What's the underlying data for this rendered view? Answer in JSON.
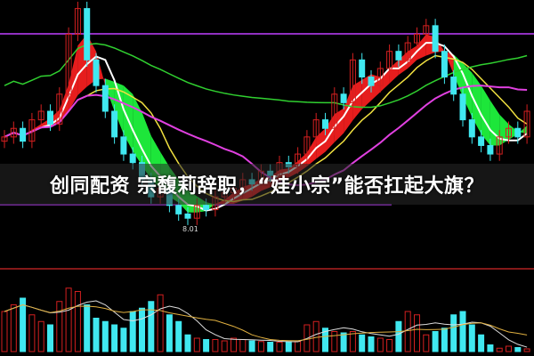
{
  "headline": "创同配资 宗馥莉辞职，“娃小宗”能否扛起大旗？",
  "chart_data": {
    "type": "candlestick",
    "low_label": "8.01",
    "closes": [
      9.0,
      9.1,
      8.95,
      9.2,
      9.3,
      9.15,
      9.5,
      10.2,
      10.5,
      9.9,
      9.6,
      9.3,
      9.0,
      8.8,
      8.7,
      8.5,
      8.3,
      8.4,
      8.2,
      8.1,
      8.05,
      8.2,
      8.15,
      8.3,
      8.35,
      8.4,
      8.5,
      8.45,
      8.6,
      8.55,
      8.7,
      8.65,
      8.8,
      9.0,
      9.2,
      9.1,
      9.5,
      9.4,
      9.9,
      9.7,
      9.6,
      9.8,
      10.0,
      9.9,
      10.1,
      10.2,
      10.3,
      10.0,
      9.7,
      9.5,
      9.2,
      9.0,
      8.9,
      8.8,
      9.0,
      9.1,
      9.0,
      9.3
    ],
    "volumes": [
      60,
      70,
      80,
      55,
      45,
      40,
      75,
      95,
      90,
      70,
      50,
      45,
      40,
      35,
      60,
      65,
      75,
      85,
      55,
      45,
      25,
      20,
      18,
      18,
      16,
      20,
      18,
      16,
      15,
      14,
      14,
      15,
      15,
      40,
      45,
      35,
      30,
      28,
      30,
      25,
      22,
      20,
      18,
      45,
      60,
      55,
      25,
      30,
      35,
      55,
      60,
      40,
      25,
      10,
      5,
      8,
      6,
      4
    ],
    "up_color": "#d42020",
    "down_color": "#40e8f0",
    "ma_colors": {
      "ma5": "#ffffff",
      "ma10": "#f0e040",
      "ma20": "#e040e0",
      "long": "#30d030"
    },
    "ribbon_colors": {
      "up": "#ff2020",
      "down": "#20ff40"
    },
    "grid": false
  }
}
